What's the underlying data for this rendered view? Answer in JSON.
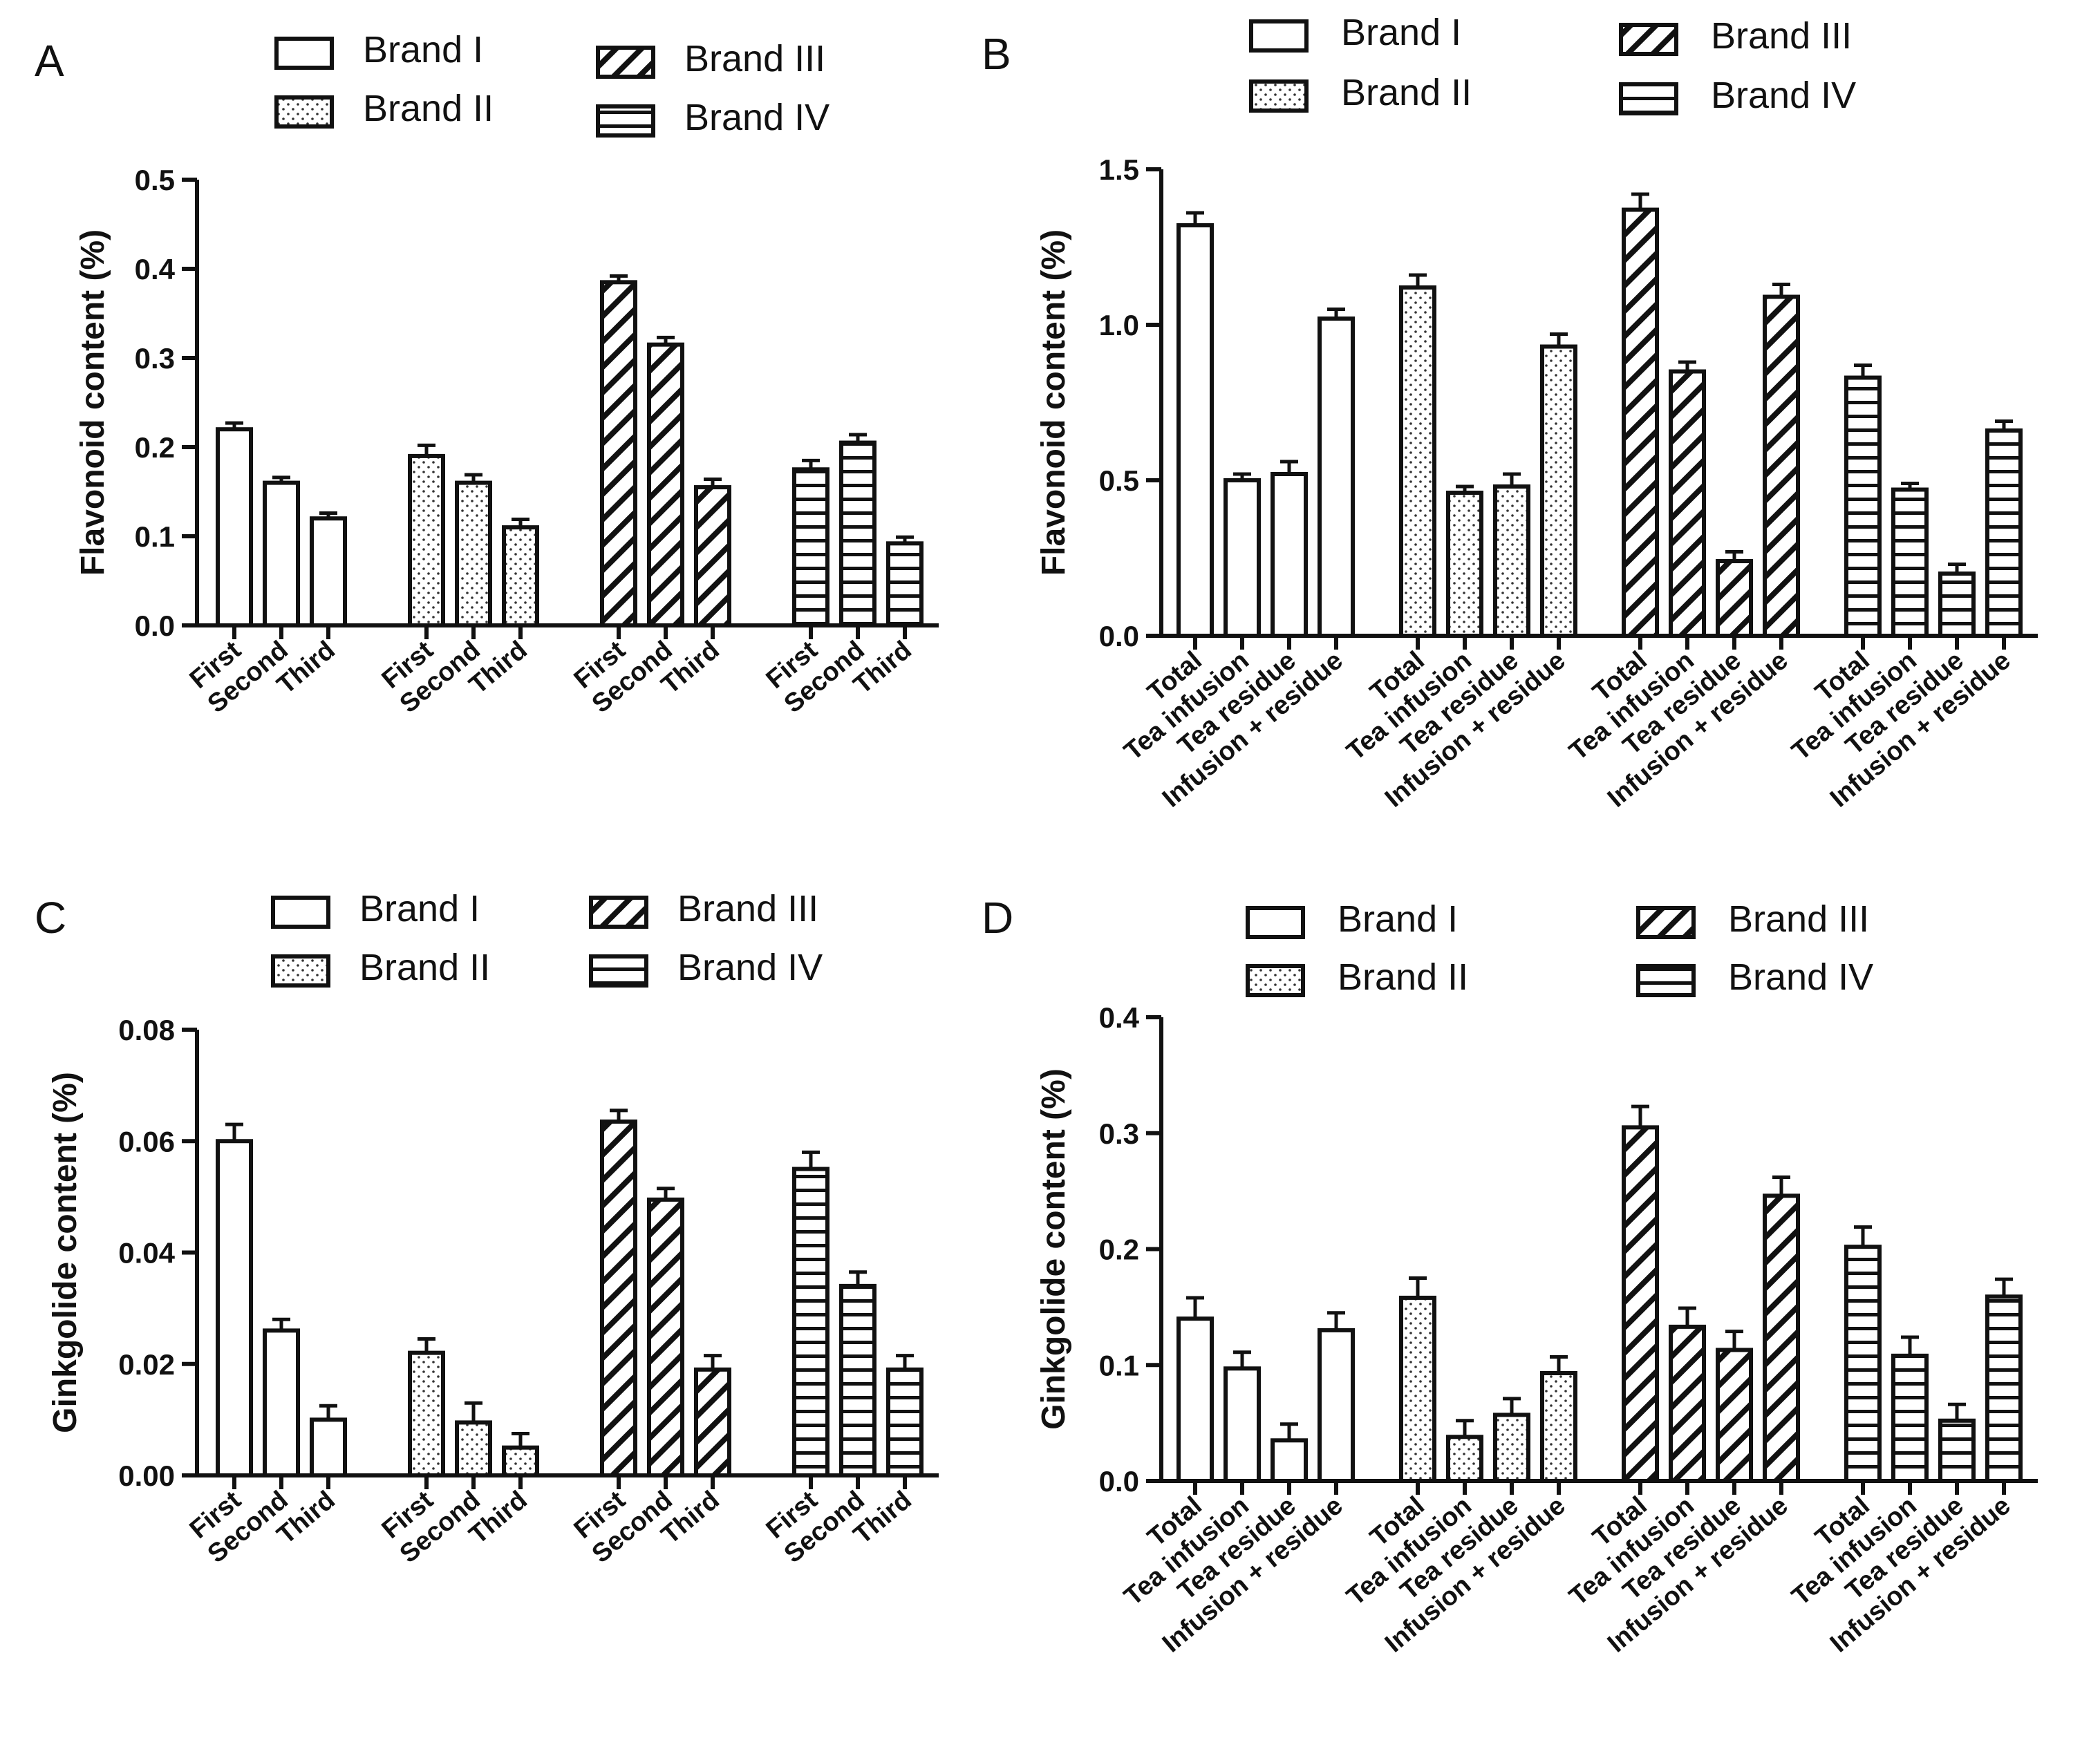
{
  "chart_data": [
    {
      "panel": "A",
      "type": "bar",
      "ylabel": "Flavonoid content (%)",
      "ylim": [
        0,
        0.5
      ],
      "yticks": [
        "0.0",
        "0.1",
        "0.2",
        "0.3",
        "0.4",
        "0.5"
      ],
      "categories": [
        "First",
        "Second",
        "Third"
      ],
      "series": [
        {
          "name": "Brand I",
          "pattern": "open",
          "values": [
            0.22,
            0.16,
            0.12
          ],
          "errors": [
            0.007,
            0.006,
            0.006
          ]
        },
        {
          "name": "Brand II",
          "pattern": "dotted",
          "values": [
            0.19,
            0.16,
            0.11
          ],
          "errors": [
            0.012,
            0.009,
            0.009
          ]
        },
        {
          "name": "Brand III",
          "pattern": "diagonal",
          "values": [
            0.385,
            0.315,
            0.155
          ],
          "errors": [
            0.007,
            0.008,
            0.009
          ]
        },
        {
          "name": "Brand IV",
          "pattern": "horizontal",
          "values": [
            0.175,
            0.205,
            0.092
          ],
          "errors": [
            0.01,
            0.009,
            0.007
          ]
        }
      ]
    },
    {
      "panel": "B",
      "type": "bar",
      "ylabel": "Flavonoid content (%)",
      "ylim": [
        0,
        1.5
      ],
      "yticks": [
        "0.0",
        "0.5",
        "1.0",
        "1.5"
      ],
      "categories": [
        "Total",
        "Tea infusion",
        "Tea residue",
        "Infusion + residue"
      ],
      "series": [
        {
          "name": "Brand I",
          "pattern": "open",
          "values": [
            1.32,
            0.5,
            0.52,
            1.02
          ],
          "errors": [
            0.04,
            0.02,
            0.04,
            0.03
          ]
        },
        {
          "name": "Brand II",
          "pattern": "dotted",
          "values": [
            1.12,
            0.46,
            0.48,
            0.93
          ],
          "errors": [
            0.04,
            0.02,
            0.04,
            0.04
          ]
        },
        {
          "name": "Brand III",
          "pattern": "diagonal",
          "values": [
            1.37,
            0.85,
            0.24,
            1.09
          ],
          "errors": [
            0.05,
            0.03,
            0.03,
            0.04
          ]
        },
        {
          "name": "Brand IV",
          "pattern": "horizontal",
          "values": [
            0.83,
            0.47,
            0.2,
            0.66
          ],
          "errors": [
            0.04,
            0.02,
            0.03,
            0.03
          ]
        }
      ]
    },
    {
      "panel": "C",
      "type": "bar",
      "ylabel": "Ginkgolide content (%)",
      "ylim": [
        0,
        0.08
      ],
      "yticks": [
        "0.00",
        "0.02",
        "0.04",
        "0.06",
        "0.08"
      ],
      "categories": [
        "First",
        "Second",
        "Third"
      ],
      "series": [
        {
          "name": "Brand I",
          "pattern": "open",
          "values": [
            0.06,
            0.026,
            0.01
          ],
          "errors": [
            0.003,
            0.002,
            0.0025
          ]
        },
        {
          "name": "Brand II",
          "pattern": "dotted",
          "values": [
            0.022,
            0.0095,
            0.005
          ],
          "errors": [
            0.0025,
            0.0035,
            0.0025
          ]
        },
        {
          "name": "Brand III",
          "pattern": "diagonal",
          "values": [
            0.0635,
            0.0495,
            0.019
          ],
          "errors": [
            0.002,
            0.002,
            0.0025
          ]
        },
        {
          "name": "Brand IV",
          "pattern": "horizontal",
          "values": [
            0.055,
            0.034,
            0.019
          ],
          "errors": [
            0.003,
            0.0025,
            0.0025
          ]
        }
      ]
    },
    {
      "panel": "D",
      "type": "bar",
      "ylabel": "Ginkgolide content (%)",
      "ylim": [
        0,
        0.4
      ],
      "yticks": [
        "0.0",
        "0.1",
        "0.2",
        "0.3",
        "0.4"
      ],
      "categories": [
        "Total",
        "Tea infusion",
        "Tea residue",
        "Infusion + residue"
      ],
      "series": [
        {
          "name": "Brand I",
          "pattern": "open",
          "values": [
            0.14,
            0.097,
            0.035,
            0.13
          ],
          "errors": [
            0.018,
            0.014,
            0.014,
            0.015
          ]
        },
        {
          "name": "Brand II",
          "pattern": "dotted",
          "values": [
            0.158,
            0.038,
            0.057,
            0.093
          ],
          "errors": [
            0.017,
            0.014,
            0.014,
            0.014
          ]
        },
        {
          "name": "Brand III",
          "pattern": "diagonal",
          "values": [
            0.305,
            0.133,
            0.113,
            0.246
          ],
          "errors": [
            0.018,
            0.016,
            0.016,
            0.016
          ]
        },
        {
          "name": "Brand IV",
          "pattern": "horizontal",
          "values": [
            0.202,
            0.108,
            0.052,
            0.159
          ],
          "errors": [
            0.017,
            0.016,
            0.014,
            0.015
          ]
        }
      ]
    }
  ]
}
